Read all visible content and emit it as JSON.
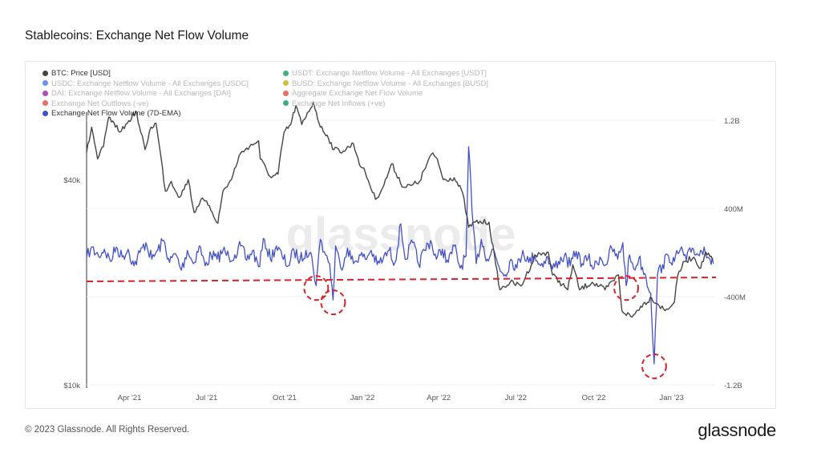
{
  "title": "Stablecoins: Exchange Net Flow Volume",
  "footer": {
    "copyright": "© 2023 Glassnode. All Rights Reserved.",
    "logo": "glassnode"
  },
  "watermark": "glassnode",
  "legend": [
    {
      "label": "BTC: Price [USD]",
      "color": "#444444",
      "active": true
    },
    {
      "label": "USDT: Exchange Netflow Volume - All Exchanges [USDT]",
      "color": "#1aa56b",
      "active": false
    },
    {
      "label": "USDC: Exchange Netflow Volume - All Exchanges [USDC]",
      "color": "#4e7cf0",
      "active": false
    },
    {
      "label": "BUSD: Exchange Netflow Volume - All Exchanges [BUSD]",
      "color": "#c9b11c",
      "active": false
    },
    {
      "label": "DAI: Exchange Netflow Volume - All Exchanges [DAI]",
      "color": "#9b2fb5",
      "active": false
    },
    {
      "label": "Aggregate Exchange Net Flow Volume",
      "color": "#e2564a",
      "active": false
    },
    {
      "label": "Exchange Net Outflows (-ve)",
      "color": "#e2564a",
      "active": false
    },
    {
      "label": "Exchange Net Inflows (+ve)",
      "color": "#1e9c73",
      "active": false
    },
    {
      "label": "Exchange Net Flow Volume (7D-EMA)",
      "color": "#3f4fc9",
      "active": true
    }
  ],
  "chart_data": {
    "type": "line",
    "x_ticks": [
      "Apr '21",
      "Jul '21",
      "Oct '21",
      "Jan '22",
      "Apr '22",
      "Jul '22",
      "Oct '22",
      "Jan '23"
    ],
    "x_range": [
      "2021-02-15",
      "2023-02-28"
    ],
    "y_left": {
      "scale": "log",
      "ticks": [
        "$40k",
        "$10k"
      ],
      "range": [
        10000,
        65000
      ]
    },
    "y_right": {
      "scale": "linear",
      "ticks": [
        "1.2B",
        "400M",
        "-400M",
        "-1.2B"
      ],
      "range": [
        -1200000000,
        1200000000
      ]
    },
    "colors": {
      "price": "#444444",
      "flow": "#4150c8",
      "annotation": "#d8222a"
    },
    "series": [
      {
        "name": "BTC: Price [USD]",
        "axis": "left",
        "points": [
          [
            "2021-02-15",
            48000
          ],
          [
            "2021-02-21",
            57000
          ],
          [
            "2021-02-28",
            46000
          ],
          [
            "2021-03-07",
            50000
          ],
          [
            "2021-03-13",
            61000
          ],
          [
            "2021-03-21",
            57000
          ],
          [
            "2021-03-28",
            55500
          ],
          [
            "2021-04-04",
            58500
          ],
          [
            "2021-04-14",
            63500
          ],
          [
            "2021-04-20",
            55000
          ],
          [
            "2021-04-25",
            49000
          ],
          [
            "2021-05-02",
            57000
          ],
          [
            "2021-05-08",
            58500
          ],
          [
            "2021-05-12",
            50000
          ],
          [
            "2021-05-19",
            37000
          ],
          [
            "2021-05-26",
            39500
          ],
          [
            "2021-06-05",
            35500
          ],
          [
            "2021-06-15",
            40000
          ],
          [
            "2021-06-22",
            32000
          ],
          [
            "2021-06-30",
            35000
          ],
          [
            "2021-07-10",
            33500
          ],
          [
            "2021-07-20",
            29800
          ],
          [
            "2021-07-26",
            37000
          ],
          [
            "2021-08-05",
            40000
          ],
          [
            "2021-08-14",
            47000
          ],
          [
            "2021-08-23",
            49500
          ],
          [
            "2021-09-06",
            52000
          ],
          [
            "2021-09-08",
            46000
          ],
          [
            "2021-09-21",
            40500
          ],
          [
            "2021-09-29",
            41500
          ],
          [
            "2021-10-06",
            55000
          ],
          [
            "2021-10-14",
            58000
          ],
          [
            "2021-10-20",
            66000
          ],
          [
            "2021-10-27",
            58000
          ],
          [
            "2021-11-01",
            61000
          ],
          [
            "2021-11-10",
            67500
          ],
          [
            "2021-11-18",
            57000
          ],
          [
            "2021-11-26",
            54000
          ],
          [
            "2021-12-04",
            49000
          ],
          [
            "2021-12-15",
            48500
          ],
          [
            "2021-12-27",
            51000
          ],
          [
            "2022-01-05",
            43500
          ],
          [
            "2022-01-10",
            42000
          ],
          [
            "2022-01-22",
            35000
          ],
          [
            "2022-02-01",
            38500
          ],
          [
            "2022-02-10",
            44500
          ],
          [
            "2022-02-24",
            38000
          ],
          [
            "2022-03-06",
            38500
          ],
          [
            "2022-03-15",
            39500
          ],
          [
            "2022-03-29",
            47500
          ],
          [
            "2022-04-05",
            46000
          ],
          [
            "2022-04-12",
            40000
          ],
          [
            "2022-04-25",
            40500
          ],
          [
            "2022-05-05",
            36500
          ],
          [
            "2022-05-12",
            29000
          ],
          [
            "2022-05-20",
            30000
          ],
          [
            "2022-06-05",
            30000
          ],
          [
            "2022-06-13",
            22500
          ],
          [
            "2022-06-18",
            19000
          ],
          [
            "2022-06-30",
            20000
          ],
          [
            "2022-07-13",
            19500
          ],
          [
            "2022-07-30",
            24000
          ],
          [
            "2022-08-14",
            24500
          ],
          [
            "2022-08-19",
            21000
          ],
          [
            "2022-09-06",
            19000
          ],
          [
            "2022-09-12",
            22500
          ],
          [
            "2022-09-20",
            19000
          ],
          [
            "2022-10-05",
            20000
          ],
          [
            "2022-10-20",
            19000
          ],
          [
            "2022-11-05",
            21000
          ],
          [
            "2022-11-09",
            16500
          ],
          [
            "2022-11-21",
            15800
          ],
          [
            "2022-12-01",
            17000
          ],
          [
            "2022-12-14",
            18000
          ],
          [
            "2022-12-30",
            16500
          ],
          [
            "2023-01-10",
            17500
          ],
          [
            "2023-01-14",
            21000
          ],
          [
            "2023-01-22",
            23000
          ],
          [
            "2023-02-02",
            23700
          ],
          [
            "2023-02-10",
            22000
          ],
          [
            "2023-02-16",
            24500
          ],
          [
            "2023-02-24",
            23200
          ]
        ]
      },
      {
        "name": "Exchange Net Flow Volume (7D-EMA)",
        "axis": "right",
        "points": [
          [
            "2021-02-15",
            -50000000
          ],
          [
            "2021-02-20",
            40000000
          ],
          [
            "2021-03-01",
            -30000000
          ],
          [
            "2021-03-08",
            30000000
          ],
          [
            "2021-03-15",
            -80000000
          ],
          [
            "2021-03-22",
            50000000
          ],
          [
            "2021-03-29",
            -40000000
          ],
          [
            "2021-04-05",
            30000000
          ],
          [
            "2021-04-12",
            -120000000
          ],
          [
            "2021-04-19",
            0
          ],
          [
            "2021-04-26",
            90000000
          ],
          [
            "2021-05-03",
            -60000000
          ],
          [
            "2021-05-10",
            20000000
          ],
          [
            "2021-05-17",
            110000000
          ],
          [
            "2021-05-24",
            -90000000
          ],
          [
            "2021-05-31",
            -10000000
          ],
          [
            "2021-06-07",
            -160000000
          ],
          [
            "2021-06-14",
            20000000
          ],
          [
            "2021-06-21",
            -100000000
          ],
          [
            "2021-06-28",
            60000000
          ],
          [
            "2021-07-05",
            -120000000
          ],
          [
            "2021-07-12",
            -20000000
          ],
          [
            "2021-07-19",
            -60000000
          ],
          [
            "2021-07-26",
            20000000
          ],
          [
            "2021-08-02",
            -40000000
          ],
          [
            "2021-08-09",
            -20000000
          ],
          [
            "2021-08-16",
            60000000
          ],
          [
            "2021-08-23",
            -70000000
          ],
          [
            "2021-08-30",
            20000000
          ],
          [
            "2021-09-06",
            -130000000
          ],
          [
            "2021-09-13",
            120000000
          ],
          [
            "2021-09-20",
            -60000000
          ],
          [
            "2021-09-27",
            60000000
          ],
          [
            "2021-10-04",
            -40000000
          ],
          [
            "2021-10-11",
            -120000000
          ],
          [
            "2021-10-18",
            20000000
          ],
          [
            "2021-10-25",
            -70000000
          ],
          [
            "2021-11-01",
            20000000
          ],
          [
            "2021-11-08",
            -40000000
          ],
          [
            "2021-11-13",
            -300000000
          ],
          [
            "2021-11-18",
            120000000
          ],
          [
            "2021-11-24",
            -20000000
          ],
          [
            "2021-11-29",
            -100000000
          ],
          [
            "2021-12-03",
            -430000000
          ],
          [
            "2021-12-06",
            60000000
          ],
          [
            "2021-12-12",
            -140000000
          ],
          [
            "2021-12-20",
            40000000
          ],
          [
            "2021-12-27",
            -100000000
          ],
          [
            "2022-01-03",
            -20000000
          ],
          [
            "2022-01-10",
            -60000000
          ],
          [
            "2022-01-17",
            20000000
          ],
          [
            "2022-01-24",
            -110000000
          ],
          [
            "2022-01-31",
            -60000000
          ],
          [
            "2022-02-07",
            20000000
          ],
          [
            "2022-02-14",
            -90000000
          ],
          [
            "2022-02-21",
            260000000
          ],
          [
            "2022-02-26",
            -60000000
          ],
          [
            "2022-03-07",
            90000000
          ],
          [
            "2022-03-14",
            -110000000
          ],
          [
            "2022-03-21",
            20000000
          ],
          [
            "2022-03-28",
            110000000
          ],
          [
            "2022-04-04",
            -60000000
          ],
          [
            "2022-04-11",
            30000000
          ],
          [
            "2022-04-18",
            -90000000
          ],
          [
            "2022-04-25",
            60000000
          ],
          [
            "2022-05-02",
            -140000000
          ],
          [
            "2022-05-09",
            -30000000
          ],
          [
            "2022-05-12",
            960000000
          ],
          [
            "2022-05-16",
            380000000
          ],
          [
            "2022-05-21",
            -100000000
          ],
          [
            "2022-05-27",
            120000000
          ],
          [
            "2022-06-03",
            -60000000
          ],
          [
            "2022-06-10",
            30000000
          ],
          [
            "2022-06-17",
            -130000000
          ],
          [
            "2022-06-24",
            -200000000
          ],
          [
            "2022-07-01",
            -60000000
          ],
          [
            "2022-07-08",
            -140000000
          ],
          [
            "2022-07-15",
            20000000
          ],
          [
            "2022-07-22",
            -90000000
          ],
          [
            "2022-07-29",
            -20000000
          ],
          [
            "2022-08-05",
            -120000000
          ],
          [
            "2022-08-12",
            -40000000
          ],
          [
            "2022-08-19",
            -150000000
          ],
          [
            "2022-08-26",
            -80000000
          ],
          [
            "2022-09-02",
            -30000000
          ],
          [
            "2022-09-09",
            -120000000
          ],
          [
            "2022-09-16",
            10000000
          ],
          [
            "2022-09-23",
            -100000000
          ],
          [
            "2022-09-30",
            -50000000
          ],
          [
            "2022-10-07",
            -140000000
          ],
          [
            "2022-10-14",
            -40000000
          ],
          [
            "2022-10-21",
            -110000000
          ],
          [
            "2022-10-28",
            40000000
          ],
          [
            "2022-11-04",
            -60000000
          ],
          [
            "2022-11-10",
            90000000
          ],
          [
            "2022-11-14",
            -300000000
          ],
          [
            "2022-11-18",
            -20000000
          ],
          [
            "2022-11-23",
            -150000000
          ],
          [
            "2022-11-29",
            -50000000
          ],
          [
            "2022-12-06",
            -190000000
          ],
          [
            "2022-12-13",
            -370000000
          ],
          [
            "2022-12-17",
            -1010000000
          ],
          [
            "2022-12-21",
            -200000000
          ],
          [
            "2022-12-27",
            -110000000
          ],
          [
            "2023-01-03",
            -30000000
          ],
          [
            "2023-01-10",
            -80000000
          ],
          [
            "2023-01-17",
            30000000
          ],
          [
            "2023-01-24",
            -70000000
          ],
          [
            "2023-01-31",
            40000000
          ],
          [
            "2023-02-07",
            -20000000
          ],
          [
            "2023-02-14",
            50000000
          ],
          [
            "2023-02-21",
            -60000000
          ],
          [
            "2023-02-25",
            -100000000
          ]
        ]
      }
    ],
    "annotations": {
      "threshold_line": -240000000,
      "circled_dates": [
        "2021-11-13",
        "2021-12-03",
        "2022-11-14",
        "2022-12-17"
      ]
    }
  }
}
